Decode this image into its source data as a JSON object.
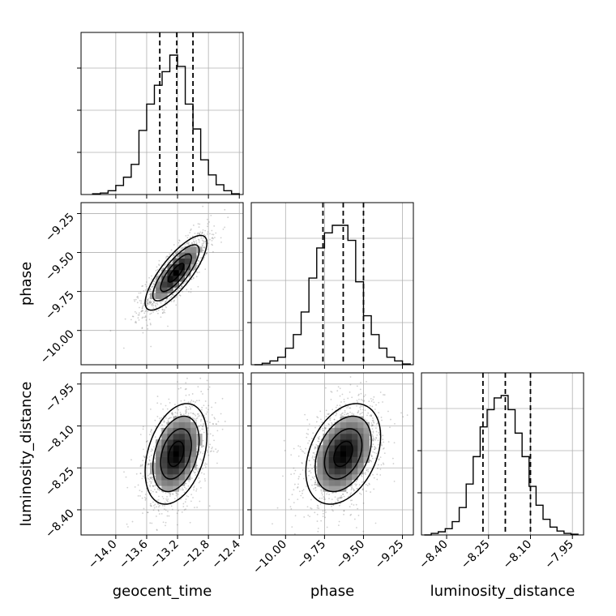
{
  "chart_data": {
    "type": "corner",
    "parameters": [
      "geocent_time",
      "phase",
      "luminosity_distance"
    ],
    "grid": true,
    "ranges": {
      "geocent_time": [
        -14.45,
        -12.35
      ],
      "phase": [
        -10.22,
        -9.18
      ],
      "luminosity_distance": [
        -8.49,
        -7.91
      ]
    },
    "ticks": {
      "geocent_time": {
        "values": [
          -14.0,
          -13.6,
          -13.2,
          -12.8,
          -12.4
        ],
        "labels": [
          "−14.0",
          "−13.6",
          "−13.2",
          "−12.8",
          "−12.4"
        ]
      },
      "phase": {
        "values": [
          -10.0,
          -9.75,
          -9.5,
          -9.25
        ],
        "labels": [
          "−10.00",
          "−9.75",
          "−9.50",
          "−9.25"
        ]
      },
      "luminosity_distance": {
        "values": [
          -8.4,
          -8.25,
          -8.1,
          -7.95
        ],
        "labels": [
          "−8.40",
          "−8.25",
          "−8.10",
          "−7.95"
        ]
      }
    },
    "histograms": {
      "geocent_time": {
        "bin_edges": [
          -14.3,
          -14.2,
          -14.1,
          -14.0,
          -13.9,
          -13.8,
          -13.7,
          -13.6,
          -13.5,
          -13.4,
          -13.3,
          -13.2,
          -13.1,
          -13.0,
          -12.9,
          -12.8,
          -12.7,
          -12.6,
          -12.5,
          -12.4
        ],
        "counts": [
          1,
          2,
          5,
          12,
          23,
          40,
          85,
          120,
          145,
          163,
          185,
          170,
          120,
          87,
          46,
          26,
          13,
          5,
          1
        ],
        "quantiles": [
          -13.43,
          -13.21,
          -13.0
        ]
      },
      "phase": {
        "bin_edges": [
          -10.2,
          -10.15,
          -10.1,
          -10.05,
          -10.0,
          -9.95,
          -9.9,
          -9.85,
          -9.8,
          -9.75,
          -9.7,
          -9.65,
          -9.6,
          -9.55,
          -9.5,
          -9.45,
          -9.4,
          -9.35,
          -9.3,
          -9.25,
          -9.2
        ],
        "counts": [
          0,
          2,
          5,
          10,
          22,
          40,
          70,
          115,
          155,
          175,
          185,
          185,
          165,
          110,
          65,
          40,
          22,
          10,
          5,
          1
        ],
        "quantiles": [
          -9.76,
          -9.63,
          -9.5
        ]
      },
      "luminosity_distance": {
        "bin_edges": [
          -8.48,
          -8.455,
          -8.43,
          -8.405,
          -8.38,
          -8.355,
          -8.33,
          -8.305,
          -8.28,
          -8.255,
          -8.23,
          -8.205,
          -8.18,
          -8.155,
          -8.13,
          -8.105,
          -8.08,
          -8.055,
          -8.03,
          -8.005,
          -7.98,
          -7.955,
          -7.93
        ],
        "counts": [
          0,
          2,
          4,
          8,
          17,
          35,
          65,
          100,
          138,
          160,
          175,
          178,
          160,
          130,
          100,
          62,
          38,
          20,
          10,
          5,
          2,
          1
        ],
        "quantiles": [
          -8.27,
          -8.19,
          -8.1
        ]
      }
    },
    "joint_2d": [
      {
        "x": "geocent_time",
        "y": "phase",
        "center": [
          -13.22,
          -9.63
        ],
        "sd": [
          0.2,
          0.12
        ],
        "corr": 0.8
      },
      {
        "x": "geocent_time",
        "y": "luminosity_distance",
        "center": [
          -13.22,
          -8.2
        ],
        "sd": [
          0.2,
          0.09
        ],
        "corr": 0.35
      },
      {
        "x": "phase",
        "y": "luminosity_distance",
        "center": [
          -9.63,
          -8.2
        ],
        "sd": [
          0.12,
          0.09
        ],
        "corr": 0.35
      }
    ],
    "contour_levels": [
      0.5,
      1.0,
      1.5,
      2.0
    ]
  }
}
